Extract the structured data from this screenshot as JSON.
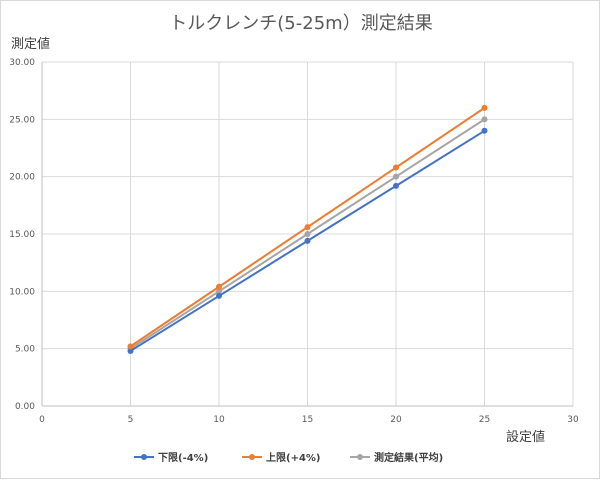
{
  "chart_data": {
    "type": "line",
    "title": "トルクレンチ(5-25m）測定結果",
    "xlabel": "設定値",
    "ylabel": "測定値",
    "xlim": [
      0,
      30
    ],
    "ylim": [
      0,
      30
    ],
    "x_ticks": [
      "0",
      "5",
      "10",
      "15",
      "20",
      "25",
      "30"
    ],
    "y_ticks": [
      "0.00",
      "5.00",
      "10.00",
      "15.00",
      "20.00",
      "25.00",
      "30.00"
    ],
    "grid": true,
    "legend_position": "bottom",
    "x": [
      5,
      10,
      15,
      20,
      25
    ],
    "series": [
      {
        "name": "下限(-4%)",
        "color": "#4472c4",
        "values": [
          4.8,
          9.6,
          14.4,
          19.2,
          24.0
        ]
      },
      {
        "name": "上限(+4%)",
        "color": "#ed7d31",
        "values": [
          5.2,
          10.4,
          15.6,
          20.8,
          26.0
        ]
      },
      {
        "name": "測定結果(平均)",
        "color": "#a5a5a5",
        "values": [
          5.0,
          10.0,
          15.0,
          20.0,
          25.0
        ]
      }
    ]
  }
}
